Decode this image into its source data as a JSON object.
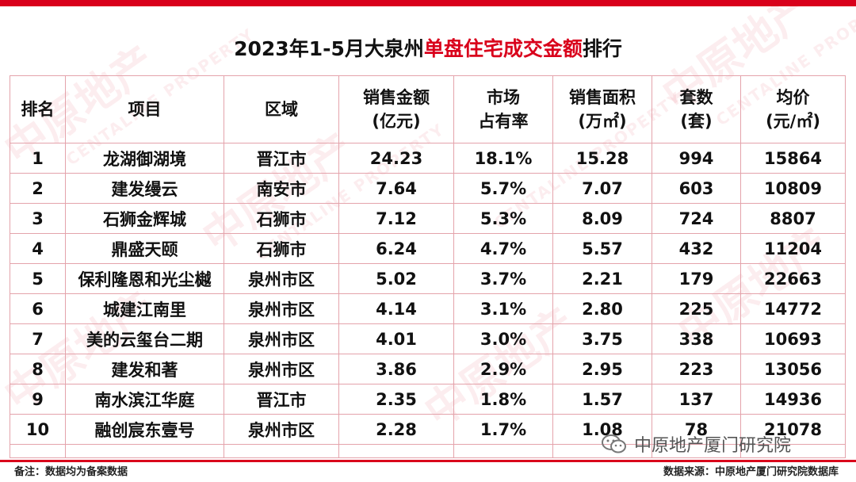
{
  "title": {
    "prefix": "2023年1-5月大泉州",
    "highlight": "单盘住宅成交金额",
    "suffix": "排行"
  },
  "colors": {
    "accent": "#d9001b",
    "border": "#e4a3ab"
  },
  "watermark": {
    "cn": "中原地产",
    "en": "CENTALINE PROPERTY"
  },
  "table": {
    "headers": [
      {
        "l1": "排名",
        "l2": ""
      },
      {
        "l1": "项目",
        "l2": ""
      },
      {
        "l1": "区域",
        "l2": ""
      },
      {
        "l1": "销售金额",
        "l2": "(亿元)"
      },
      {
        "l1": "市场",
        "l2": "占有率"
      },
      {
        "l1": "销售面积",
        "l2": "(万㎡)"
      },
      {
        "l1": "套数",
        "l2": "(套)"
      },
      {
        "l1": "均价",
        "l2": "(元/㎡)"
      }
    ],
    "rows": [
      [
        "1",
        "龙湖御湖境",
        "晋江市",
        "24.23",
        "18.1%",
        "15.28",
        "994",
        "15864"
      ],
      [
        "2",
        "建发缦云",
        "南安市",
        "7.64",
        "5.7%",
        "7.07",
        "603",
        "10809"
      ],
      [
        "3",
        "石狮金辉城",
        "石狮市",
        "7.12",
        "5.3%",
        "8.09",
        "724",
        "8807"
      ],
      [
        "4",
        "鼎盛天颐",
        "石狮市",
        "6.24",
        "4.7%",
        "5.57",
        "432",
        "11204"
      ],
      [
        "5",
        "保利隆恩和光尘樾",
        "泉州市区",
        "5.02",
        "3.7%",
        "2.21",
        "179",
        "22663"
      ],
      [
        "6",
        "城建江南里",
        "泉州市区",
        "4.14",
        "3.1%",
        "2.80",
        "225",
        "14772"
      ],
      [
        "7",
        "美的云玺台二期",
        "泉州市区",
        "4.01",
        "3.0%",
        "3.75",
        "338",
        "10693"
      ],
      [
        "8",
        "建发和著",
        "泉州市区",
        "3.86",
        "2.9%",
        "2.95",
        "223",
        "13056"
      ],
      [
        "9",
        "南水滨江华庭",
        "晋江市",
        "2.35",
        "1.8%",
        "1.57",
        "137",
        "14936"
      ],
      [
        "10",
        "融创宸东壹号",
        "泉州市区",
        "2.28",
        "1.7%",
        "1.08",
        "78",
        "21078"
      ]
    ]
  },
  "footer": {
    "note": "备注：数据均为备案数据",
    "source": "数据来源：中原地产厦门研究院数据库"
  },
  "wechat": {
    "label": "中原地产厦门研究院",
    "icon": "wechat-icon"
  }
}
